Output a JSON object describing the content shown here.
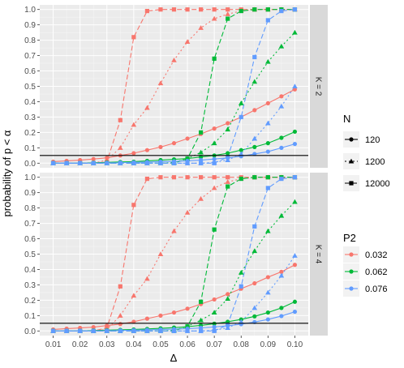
{
  "chart_data": {
    "type": "line",
    "xlabel": "Δ",
    "ylabel": "probability of p < α",
    "xlim": [
      0.005,
      0.105
    ],
    "ylim": [
      -0.03,
      1.03
    ],
    "xticks": [
      0.01,
      0.02,
      0.03,
      0.04,
      0.05,
      0.06,
      0.07,
      0.08,
      0.09,
      0.1
    ],
    "xtick_labels": [
      "0.01",
      "0.02",
      "0.03",
      "0.04",
      "0.05",
      "0.06",
      "0.07",
      "0.08",
      "0.09",
      "0.10"
    ],
    "yticks": [
      0,
      0.1,
      0.2,
      0.3,
      0.4,
      0.5,
      0.6,
      0.7,
      0.8,
      0.9,
      1
    ],
    "ytick_labels": [
      "0.0",
      "0.1",
      "0.2",
      "0.3",
      "0.4",
      "0.5",
      "0.6",
      "0.7",
      "0.8",
      "0.9",
      "1.0"
    ],
    "hline": 0.05,
    "grid": true,
    "x": [
      0.01,
      0.015,
      0.02,
      0.025,
      0.03,
      0.035,
      0.04,
      0.045,
      0.05,
      0.055,
      0.06,
      0.065,
      0.07,
      0.075,
      0.08,
      0.085,
      0.09,
      0.095,
      0.1
    ],
    "legend_N": {
      "title": "N",
      "entries": [
        {
          "label": "120",
          "dash": "solid",
          "shape": "circle"
        },
        {
          "label": "1200",
          "dash": "dotted",
          "shape": "triangle"
        },
        {
          "label": "12000",
          "dash": "dashed",
          "shape": "square"
        }
      ]
    },
    "legend_P2": {
      "title": "P2",
      "entries": [
        {
          "label": "0.032",
          "color": "#F8766D"
        },
        {
          "label": "0.062",
          "color": "#00BA38"
        },
        {
          "label": "0.076",
          "color": "#619CFF"
        }
      ]
    },
    "panels": [
      {
        "strip": "K = 2",
        "series": [
          {
            "N": "120",
            "P2": "0.032",
            "color": "#F8766D",
            "dash": "solid",
            "shape": "circle",
            "values": [
              0.01,
              0.015,
              0.02,
              0.027,
              0.035,
              0.05,
              0.065,
              0.085,
              0.105,
              0.13,
              0.16,
              0.19,
              0.225,
              0.26,
              0.3,
              0.345,
              0.39,
              0.435,
              0.48
            ]
          },
          {
            "N": "1200",
            "P2": "0.032",
            "color": "#F8766D",
            "dash": "dotted",
            "shape": "triangle",
            "values": [
              0,
              0,
              0,
              0,
              0.02,
              0.1,
              0.25,
              0.36,
              0.52,
              0.67,
              0.79,
              0.88,
              0.94,
              0.97,
              0.99,
              1,
              1,
              1,
              1
            ]
          },
          {
            "N": "12000",
            "P2": "0.032",
            "color": "#F8766D",
            "dash": "dashed",
            "shape": "square",
            "values": [
              0,
              0,
              0,
              0,
              0.01,
              0.28,
              0.82,
              0.99,
              1,
              1,
              1,
              1,
              1,
              1,
              1,
              1,
              1,
              1,
              1
            ]
          },
          {
            "N": "120",
            "P2": "0.062",
            "color": "#00BA38",
            "dash": "solid",
            "shape": "circle",
            "values": [
              0,
              0,
              0,
              0.003,
              0.005,
              0.008,
              0.01,
              0.015,
              0.02,
              0.025,
              0.03,
              0.04,
              0.05,
              0.065,
              0.085,
              0.105,
              0.13,
              0.165,
              0.205
            ]
          },
          {
            "N": "1200",
            "P2": "0.062",
            "color": "#00BA38",
            "dash": "dotted",
            "shape": "triangle",
            "values": [
              0,
              0,
              0,
              0,
              0,
              0,
              0,
              0,
              0,
              0.005,
              0.03,
              0.07,
              0.13,
              0.22,
              0.39,
              0.53,
              0.66,
              0.76,
              0.85
            ]
          },
          {
            "N": "12000",
            "P2": "0.062",
            "color": "#00BA38",
            "dash": "dashed",
            "shape": "square",
            "values": [
              0,
              0,
              0,
              0,
              0,
              0,
              0,
              0,
              0,
              0,
              0.03,
              0.2,
              0.68,
              0.94,
              0.99,
              1,
              1,
              1,
              1
            ]
          },
          {
            "N": "120",
            "P2": "0.076",
            "color": "#619CFF",
            "dash": "solid",
            "shape": "circle",
            "values": [
              0,
              0,
              0,
              0,
              0.002,
              0.003,
              0.005,
              0.007,
              0.01,
              0.012,
              0.015,
              0.02,
              0.027,
              0.035,
              0.045,
              0.06,
              0.075,
              0.1,
              0.125
            ]
          },
          {
            "N": "1200",
            "P2": "0.076",
            "color": "#619CFF",
            "dash": "dotted",
            "shape": "triangle",
            "values": [
              0,
              0,
              0,
              0,
              0,
              0,
              0,
              0,
              0,
              0,
              0,
              0,
              0.005,
              0.02,
              0.06,
              0.16,
              0.26,
              0.37,
              0.5
            ]
          },
          {
            "N": "12000",
            "P2": "0.076",
            "color": "#619CFF",
            "dash": "dashed",
            "shape": "square",
            "values": [
              0,
              0,
              0,
              0,
              0,
              0,
              0,
              0,
              0,
              0,
              0,
              0,
              0,
              0.04,
              0.3,
              0.69,
              0.93,
              0.99,
              1
            ]
          }
        ]
      },
      {
        "strip": "K = 4",
        "series": [
          {
            "N": "120",
            "P2": "0.032",
            "color": "#F8766D",
            "dash": "solid",
            "shape": "circle",
            "values": [
              0.01,
              0.015,
              0.02,
              0.025,
              0.035,
              0.045,
              0.06,
              0.08,
              0.1,
              0.12,
              0.145,
              0.175,
              0.205,
              0.24,
              0.275,
              0.31,
              0.35,
              0.385,
              0.43
            ]
          },
          {
            "N": "1200",
            "P2": "0.032",
            "color": "#F8766D",
            "dash": "dotted",
            "shape": "triangle",
            "values": [
              0,
              0,
              0,
              0,
              0.01,
              0.1,
              0.23,
              0.34,
              0.5,
              0.65,
              0.77,
              0.86,
              0.93,
              0.97,
              0.99,
              1,
              1,
              1,
              1
            ]
          },
          {
            "N": "12000",
            "P2": "0.032",
            "color": "#F8766D",
            "dash": "dashed",
            "shape": "square",
            "values": [
              0,
              0,
              0,
              0,
              0.02,
              0.29,
              0.82,
              0.99,
              1,
              1,
              1,
              1,
              1,
              1,
              1,
              1,
              1,
              1,
              1
            ]
          },
          {
            "N": "120",
            "P2": "0.062",
            "color": "#00BA38",
            "dash": "solid",
            "shape": "circle",
            "values": [
              0,
              0,
              0,
              0.003,
              0.005,
              0.007,
              0.01,
              0.013,
              0.017,
              0.022,
              0.028,
              0.036,
              0.047,
              0.06,
              0.075,
              0.095,
              0.12,
              0.15,
              0.19
            ]
          },
          {
            "N": "1200",
            "P2": "0.062",
            "color": "#00BA38",
            "dash": "dotted",
            "shape": "triangle",
            "values": [
              0,
              0,
              0,
              0,
              0,
              0,
              0,
              0,
              0,
              0.005,
              0.03,
              0.07,
              0.12,
              0.21,
              0.38,
              0.52,
              0.65,
              0.75,
              0.84
            ]
          },
          {
            "N": "12000",
            "P2": "0.062",
            "color": "#00BA38",
            "dash": "dashed",
            "shape": "square",
            "values": [
              0,
              0,
              0,
              0,
              0,
              0,
              0,
              0,
              0,
              0,
              0.03,
              0.19,
              0.66,
              0.94,
              0.99,
              1,
              1,
              1,
              1
            ]
          },
          {
            "N": "120",
            "P2": "0.076",
            "color": "#619CFF",
            "dash": "solid",
            "shape": "circle",
            "values": [
              0,
              0,
              0,
              0,
              0.002,
              0.003,
              0.005,
              0.007,
              0.01,
              0.012,
              0.015,
              0.02,
              0.026,
              0.034,
              0.044,
              0.058,
              0.075,
              0.097,
              0.125
            ]
          },
          {
            "N": "1200",
            "P2": "0.076",
            "color": "#619CFF",
            "dash": "dotted",
            "shape": "triangle",
            "values": [
              0,
              0,
              0,
              0,
              0,
              0,
              0,
              0,
              0,
              0,
              0,
              0,
              0.005,
              0.02,
              0.06,
              0.15,
              0.25,
              0.36,
              0.49
            ]
          },
          {
            "N": "12000",
            "P2": "0.076",
            "color": "#619CFF",
            "dash": "dashed",
            "shape": "square",
            "values": [
              0,
              0,
              0,
              0,
              0,
              0,
              0,
              0,
              0,
              0,
              0,
              0,
              0,
              0.04,
              0.29,
              0.68,
              0.93,
              0.99,
              1
            ]
          }
        ]
      }
    ]
  }
}
